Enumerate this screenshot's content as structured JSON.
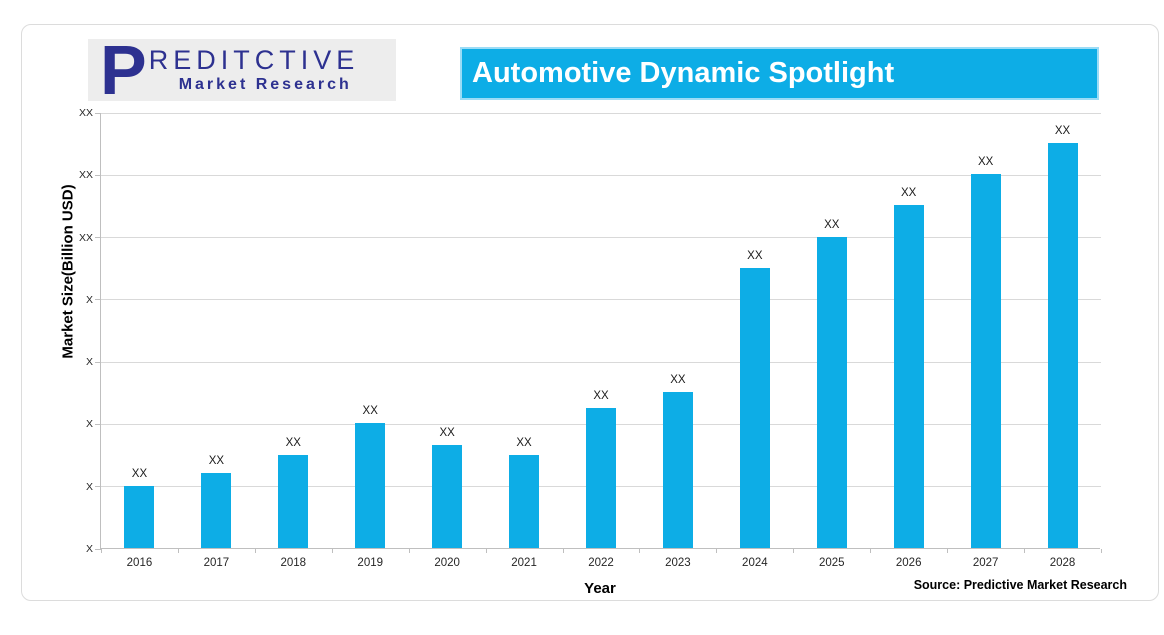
{
  "logo": {
    "initial": "P",
    "line1": "REDITCTIVE",
    "line2": "Market Research",
    "text_color": "#2d3190",
    "bg_color": "#ededed"
  },
  "title_banner": {
    "text": "Automotive Dynamic Spotlight",
    "bg_color": "#0dade6",
    "text_color": "#ffffff"
  },
  "source_note": "Source: Predictive Market Research",
  "chart_data": {
    "type": "bar",
    "title": "Automotive Dynamic Spotlight",
    "xlabel": "Year",
    "ylabel": "Market Size(Billion USD)",
    "categories": [
      "2016",
      "2017",
      "2018",
      "2019",
      "2020",
      "2021",
      "2022",
      "2023",
      "2024",
      "2025",
      "2026",
      "2027",
      "2028"
    ],
    "values": [
      1.0,
      1.2,
      1.5,
      2.0,
      1.65,
      1.5,
      2.25,
      2.5,
      4.5,
      5.0,
      5.5,
      6.0,
      6.5
    ],
    "bar_value_labels": [
      "XX",
      "XX",
      "XX",
      "XX",
      "XX",
      "XX",
      "XX",
      "XX",
      "XX",
      "XX",
      "XX",
      "XX",
      "XX"
    ],
    "y_ticks": [
      {
        "value": 0,
        "label": "X"
      },
      {
        "value": 1,
        "label": "X"
      },
      {
        "value": 2,
        "label": "X"
      },
      {
        "value": 3,
        "label": "X"
      },
      {
        "value": 4,
        "label": "X"
      },
      {
        "value": 5,
        "label": "XX"
      },
      {
        "value": 6,
        "label": "XX"
      },
      {
        "value": 7,
        "label": "XX"
      }
    ],
    "ylim": [
      0,
      7
    ],
    "grid": true,
    "legend": false,
    "bar_color": "#0dade6",
    "gridline_color": "#d9d9d9",
    "axis_color": "#bfbfbf"
  }
}
